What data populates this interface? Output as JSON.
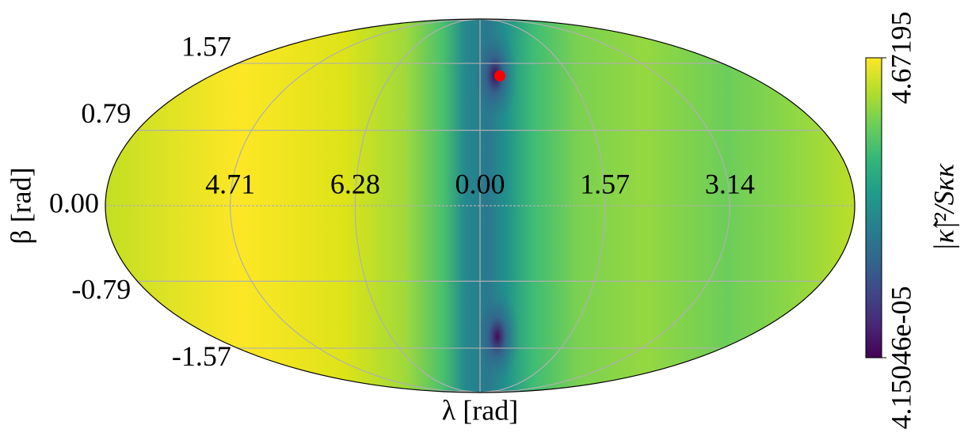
{
  "chart_data": {
    "type": "mollweide",
    "xlabel": "λ [rad]",
    "ylabel": "β [rad]",
    "xlim": [
      -3.1416,
      3.1416
    ],
    "ylim": [
      -1.5708,
      1.5708
    ],
    "xticks": [
      {
        "value": -2.0944,
        "label": "4.71"
      },
      {
        "value": -1.0472,
        "label": "6.28"
      },
      {
        "value": 0,
        "label": "0.00"
      },
      {
        "value": 1.0472,
        "label": "1.57"
      },
      {
        "value": 2.0944,
        "label": "3.14"
      }
    ],
    "yticks": [
      {
        "value": 1.0472,
        "label": "1.57"
      },
      {
        "value": 0.5236,
        "label": "0.79"
      },
      {
        "value": 0,
        "label": "0.00"
      },
      {
        "value": -0.5236,
        "label": "-0.79"
      },
      {
        "value": -1.0472,
        "label": "-1.57"
      }
    ],
    "grid": true,
    "series": [
      {
        "color": "#ff0000",
        "x": [
          0.23
        ],
        "values": [
          0.94
        ]
      }
    ],
    "colorbar": {
      "label": "|κ̃|²/Sκκ",
      "cmap": "viridis",
      "clim": [
        4.15046e-05,
        4.67195
      ],
      "ticks": [
        {
          "value": 4.15046e-05,
          "label": "4.15046e-05"
        },
        4.67195
      ]
    }
  }
}
